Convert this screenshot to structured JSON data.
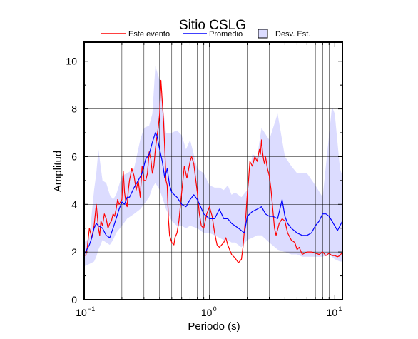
{
  "chart_data": {
    "type": "line",
    "title": "Sitio CSLG",
    "xlabel": "Periodo (s)",
    "ylabel": "Amplitud",
    "xscale": "log",
    "xlim": [
      0.1,
      11.5
    ],
    "ylim": [
      0,
      10.8
    ],
    "grid": true,
    "legend_position": "top",
    "x_ticks": [
      {
        "base": "10",
        "exp": "−1",
        "value": 0.1
      },
      {
        "base": "10",
        "exp": "0",
        "value": 1
      },
      {
        "base": "10",
        "exp": "1",
        "value": 10
      }
    ],
    "y_ticks": [
      0,
      2,
      4,
      6,
      8,
      10
    ],
    "legend": [
      {
        "label": "Este evento",
        "kind": "line",
        "color": "#ff0000"
      },
      {
        "label": "Promedio",
        "kind": "line",
        "color": "#0000ff"
      },
      {
        "label": "Desv. Est.",
        "kind": "band",
        "color": "#dcdcff"
      }
    ],
    "series": [
      {
        "name": "Este evento",
        "color": "#ff0000",
        "x": [
          0.1,
          0.103,
          0.106,
          0.11,
          0.115,
          0.12,
          0.125,
          0.13,
          0.133,
          0.136,
          0.14,
          0.145,
          0.15,
          0.155,
          0.16,
          0.165,
          0.17,
          0.175,
          0.18,
          0.185,
          0.19,
          0.2,
          0.205,
          0.21,
          0.215,
          0.22,
          0.225,
          0.23,
          0.24,
          0.25,
          0.26,
          0.27,
          0.28,
          0.29,
          0.3,
          0.31,
          0.32,
          0.33,
          0.34,
          0.35,
          0.36,
          0.37,
          0.38,
          0.39,
          0.4,
          0.41,
          0.42,
          0.43,
          0.44,
          0.45,
          0.46,
          0.47,
          0.48,
          0.5,
          0.52,
          0.53,
          0.55,
          0.57,
          0.6,
          0.63,
          0.66,
          0.7,
          0.72,
          0.75,
          0.77,
          0.8,
          0.83,
          0.86,
          0.9,
          0.95,
          1.0,
          1.05,
          1.1,
          1.15,
          1.2,
          1.3,
          1.35,
          1.4,
          1.5,
          1.6,
          1.7,
          1.8,
          1.85,
          1.9,
          1.95,
          2.0,
          2.05,
          2.1,
          2.2,
          2.3,
          2.4,
          2.5,
          2.55,
          2.6,
          2.65,
          2.7,
          2.75,
          2.8,
          2.9,
          3.0,
          3.1,
          3.2,
          3.3,
          3.4,
          3.6,
          3.8,
          4.0,
          4.2,
          4.5,
          4.8,
          5.0,
          5.2,
          5.5,
          6.0,
          6.5,
          7.0,
          7.5,
          8.0,
          8.5,
          9.0,
          9.5,
          10.0,
          10.5,
          11.0,
          11.5
        ],
        "y": [
          1.9,
          1.85,
          2.2,
          3.0,
          2.6,
          3.1,
          4.0,
          3.0,
          2.7,
          3.3,
          3.1,
          3.6,
          3.4,
          3.0,
          3.2,
          3.3,
          3.6,
          3.5,
          3.8,
          4.2,
          4.0,
          4.2,
          5.4,
          4.5,
          4.1,
          3.9,
          4.6,
          5.0,
          5.5,
          5.2,
          4.6,
          5.0,
          4.3,
          5.6,
          5.0,
          5.0,
          5.3,
          6.2,
          5.9,
          5.3,
          5.6,
          6.3,
          6.8,
          7.2,
          7.8,
          9.2,
          8.3,
          7.5,
          6.3,
          5.0,
          4.8,
          3.4,
          2.7,
          2.4,
          2.3,
          2.6,
          2.8,
          3.3,
          4.5,
          5.6,
          5.1,
          5.8,
          6.0,
          5.7,
          5.2,
          4.5,
          3.6,
          3.1,
          3.0,
          3.6,
          3.9,
          3.5,
          2.8,
          2.3,
          2.2,
          2.4,
          2.6,
          2.3,
          1.9,
          1.75,
          1.55,
          1.7,
          2.2,
          2.9,
          3.5,
          4.4,
          5.0,
          5.8,
          5.6,
          6.0,
          5.8,
          6.3,
          6.1,
          6.7,
          6.2,
          5.9,
          5.7,
          6.0,
          5.5,
          5.2,
          4.6,
          3.8,
          3.0,
          2.7,
          3.2,
          3.4,
          3.3,
          2.8,
          2.5,
          2.4,
          2.1,
          2.2,
          1.9,
          2.0,
          2.0,
          1.95,
          1.9,
          2.0,
          1.85,
          1.95,
          1.85,
          1.85,
          1.8,
          1.85,
          2.0
        ]
      },
      {
        "name": "Promedio",
        "color": "#0000ff",
        "x": [
          0.1,
          0.105,
          0.11,
          0.115,
          0.12,
          0.125,
          0.13,
          0.14,
          0.15,
          0.16,
          0.17,
          0.18,
          0.19,
          0.2,
          0.21,
          0.22,
          0.23,
          0.24,
          0.25,
          0.27,
          0.29,
          0.31,
          0.33,
          0.35,
          0.37,
          0.38,
          0.4,
          0.42,
          0.44,
          0.46,
          0.48,
          0.5,
          0.55,
          0.6,
          0.65,
          0.7,
          0.75,
          0.8,
          0.85,
          0.9,
          1.0,
          1.1,
          1.2,
          1.3,
          1.4,
          1.5,
          1.6,
          1.7,
          1.8,
          1.9,
          2.0,
          2.2,
          2.4,
          2.6,
          2.8,
          3.0,
          3.2,
          3.5,
          3.8,
          4.0,
          4.2,
          4.5,
          5.0,
          5.5,
          6.0,
          6.5,
          7.0,
          7.5,
          8.0,
          8.5,
          9.0,
          9.5,
          10.0,
          10.5,
          11.0,
          11.5
        ],
        "y": [
          1.9,
          2.1,
          2.3,
          2.6,
          3.0,
          3.2,
          3.1,
          3.0,
          2.7,
          2.6,
          3.0,
          3.4,
          3.8,
          4.1,
          4.0,
          4.3,
          4.3,
          4.5,
          4.7,
          5.0,
          5.3,
          5.9,
          6.1,
          6.6,
          7.0,
          6.9,
          6.3,
          5.8,
          5.1,
          5.5,
          4.8,
          4.5,
          4.3,
          4.0,
          3.9,
          4.2,
          4.4,
          4.2,
          3.9,
          3.6,
          3.4,
          3.4,
          3.8,
          3.4,
          3.4,
          3.2,
          3.1,
          3.0,
          2.9,
          2.8,
          3.5,
          3.7,
          3.8,
          3.9,
          3.6,
          3.5,
          3.5,
          3.4,
          4.2,
          3.5,
          3.2,
          3.0,
          2.8,
          2.7,
          2.7,
          2.8,
          3.1,
          3.3,
          3.6,
          3.6,
          3.5,
          3.3,
          3.1,
          2.9,
          3.1,
          3.3
        ]
      }
    ],
    "std_band": {
      "name": "Desv. Est.",
      "x": [
        0.1,
        0.11,
        0.12,
        0.125,
        0.13,
        0.14,
        0.15,
        0.16,
        0.17,
        0.18,
        0.2,
        0.22,
        0.25,
        0.28,
        0.3,
        0.33,
        0.35,
        0.37,
        0.4,
        0.42,
        0.45,
        0.5,
        0.55,
        0.6,
        0.65,
        0.7,
        0.8,
        0.9,
        1.0,
        1.1,
        1.2,
        1.3,
        1.4,
        1.5,
        1.6,
        1.8,
        2.0,
        2.2,
        2.4,
        2.6,
        3.0,
        3.5,
        4.0,
        4.5,
        5.0,
        5.5,
        6.0,
        7.0,
        8.0,
        9.0,
        9.5,
        10.0,
        11.0,
        11.5
      ],
      "upper": [
        2.4,
        2.6,
        4.6,
        5.3,
        6.3,
        5.0,
        4.9,
        4.4,
        4.2,
        4.4,
        5.2,
        5.3,
        5.5,
        6.7,
        7.2,
        7.3,
        7.8,
        9.8,
        9.2,
        8.3,
        7.0,
        7.0,
        7.1,
        6.9,
        6.3,
        6.7,
        5.5,
        5.3,
        4.8,
        4.7,
        4.7,
        4.6,
        4.8,
        4.4,
        4.5,
        4.3,
        4.6,
        6.1,
        6.0,
        7.2,
        6.7,
        7.8,
        6.0,
        5.6,
        5.3,
        5.3,
        5.3,
        4.8,
        4.3,
        6.9,
        8.1,
        7.8,
        5.5,
        5.2
      ],
      "lower": [
        1.4,
        1.5,
        1.6,
        1.8,
        2.1,
        2.5,
        2.4,
        2.3,
        2.5,
        2.8,
        3.1,
        3.4,
        3.6,
        3.8,
        4.0,
        4.3,
        4.7,
        4.9,
        4.6,
        4.3,
        3.8,
        3.3,
        3.1,
        3.1,
        3.0,
        3.1,
        3.0,
        2.8,
        2.8,
        2.7,
        2.6,
        2.5,
        2.5,
        2.4,
        2.4,
        2.2,
        2.5,
        2.6,
        2.7,
        2.7,
        2.4,
        2.1,
        2.0,
        1.9,
        1.9,
        1.8,
        1.8,
        1.8,
        1.8,
        1.9,
        1.8,
        1.7,
        1.6,
        1.6
      ]
    }
  }
}
